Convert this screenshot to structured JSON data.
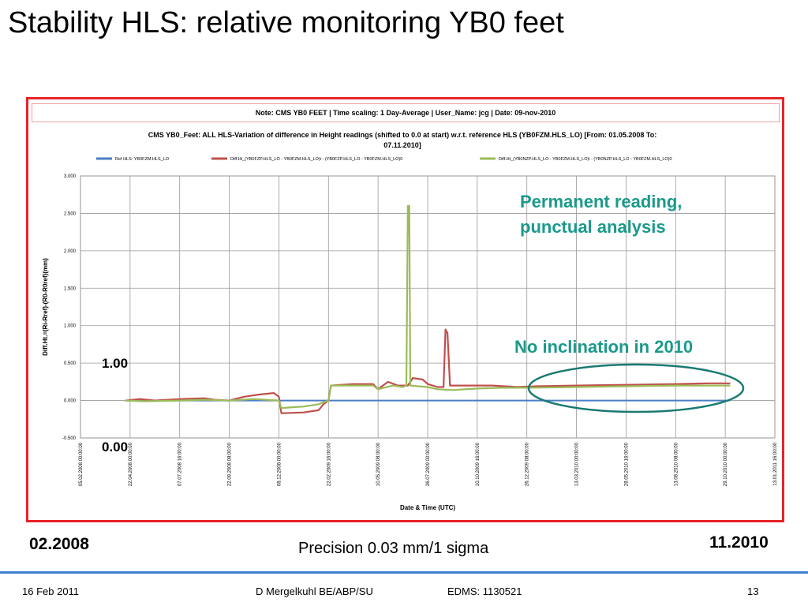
{
  "slide": {
    "title": "Stability HLS: relative monitoring YB0 feet",
    "annotations": {
      "permanent_reading": "Permanent reading,",
      "punctual_analysis": "punctual analysis",
      "no_inclination": "No inclination in 2010",
      "label_100": "1.00",
      "label_000": "0.00",
      "start_date": "02.2008",
      "end_date": "11.2010",
      "precision": "Precision 0.03 mm/1 sigma"
    },
    "footer": {
      "date": "16 Feb 2011",
      "author": "D Mergelkuhl BE/ABP/SU",
      "edms": "EDMS: 1130521",
      "page": "13"
    },
    "colors": {
      "frame": "#e8232a",
      "accent_text": "#1a9a8a",
      "ellipse": "#1a7a72",
      "footer_line": "#3f7fd0"
    }
  },
  "chart_data": {
    "type": "line",
    "note": "Note: CMS YB0 FEET |  Time scaling: 1 Day-Average    | User_Name: jcg    |  Date: 09-nov-2010",
    "title_line1": "CMS YB0_Feet: ALL HLS-Variation of difference in Height readings (shifted to 0.0 at start) w.r.t. reference HLS (YB0FZM.HLS_LO) [From: 01.05.2008 To:",
    "title_line2": "07.11.2010]",
    "xlabel": "Date & Time (UTC)",
    "ylabel": "Diff.Ht.=(Ri-Rref)-(R0-R0ref)(mm)",
    "ylim": [
      -0.5,
      3.0
    ],
    "y_ticks": [
      "3.000",
      "2.500",
      "2.000",
      "1.500",
      "1.000",
      "0.500",
      "0.000",
      "-0.500"
    ],
    "x_ticks": [
      "05.02.2008 00:00:00",
      "22.04.2008 00:00:00",
      "07.07.2008 16:00:00",
      "22.09.2008 08:00:00",
      "08.12.2008 00:00:00",
      "22.02.2009 16:00:00",
      "10.05.2009 08:00:00",
      "26.07.2009 00:00:00",
      "10.10.2009 16:00:00",
      "26.12.2009 08:00:00",
      "13.03.2010 00:00:00",
      "28.05.2010 16:00:00",
      "13.08.2010 08:00:00",
      "29.10.2010 00:00:00",
      "13.01.2011 16:00:00"
    ],
    "grid": true,
    "legend_position": "top",
    "series": [
      {
        "name": "Ref HLS: YB0FZM.HLS_LO",
        "color": "#4a7ec4",
        "points": [
          [
            0.9,
            0.0
          ],
          [
            13.1,
            0.0
          ]
        ]
      },
      {
        "name": "Diff.Ht_(YB0FZP.HLS_LO - YB0FZM.HLS_LO)i - (YB0FZP.HLS_LO - YB0FZM.HLS_LO)0",
        "color": "#c0504d",
        "points": [
          [
            0.9,
            0.0
          ],
          [
            1.2,
            0.02
          ],
          [
            1.5,
            0.0
          ],
          [
            2.0,
            0.02
          ],
          [
            2.5,
            0.03
          ],
          [
            2.7,
            0.01
          ],
          [
            3.0,
            0.0
          ],
          [
            3.3,
            0.05
          ],
          [
            3.6,
            0.08
          ],
          [
            3.9,
            0.1
          ],
          [
            4.0,
            0.05
          ],
          [
            4.05,
            -0.17
          ],
          [
            4.5,
            -0.16
          ],
          [
            4.8,
            -0.13
          ],
          [
            4.9,
            -0.05
          ],
          [
            5.0,
            0.0
          ],
          [
            5.05,
            0.2
          ],
          [
            5.5,
            0.22
          ],
          [
            5.9,
            0.22
          ],
          [
            6.0,
            0.15
          ],
          [
            6.2,
            0.25
          ],
          [
            6.4,
            0.2
          ],
          [
            6.6,
            0.2
          ],
          [
            6.7,
            0.3
          ],
          [
            6.9,
            0.28
          ],
          [
            7.0,
            0.22
          ],
          [
            7.2,
            0.18
          ],
          [
            7.32,
            0.18
          ],
          [
            7.36,
            0.95
          ],
          [
            7.4,
            0.9
          ],
          [
            7.45,
            0.2
          ],
          [
            7.8,
            0.2
          ],
          [
            8.3,
            0.2
          ],
          [
            8.8,
            0.18
          ],
          [
            9.2,
            0.19
          ],
          [
            10.0,
            0.2
          ],
          [
            11.0,
            0.21
          ],
          [
            12.0,
            0.22
          ],
          [
            12.7,
            0.23
          ],
          [
            13.1,
            0.23
          ]
        ]
      },
      {
        "name": "Diff.Ht_(YB0NZP.HLS_LO - YB0FZM.HLS_LO)i - (YB0NZP.HLS_LO - YB0FZM.HLS_LO)0",
        "color": "#9bbb59",
        "points": [
          [
            0.9,
            0.0
          ],
          [
            1.3,
            -0.01
          ],
          [
            2.0,
            0.0
          ],
          [
            2.5,
            0.01
          ],
          [
            3.0,
            0.0
          ],
          [
            3.5,
            0.02
          ],
          [
            4.0,
            0.0
          ],
          [
            4.05,
            -0.1
          ],
          [
            4.5,
            -0.08
          ],
          [
            4.8,
            -0.05
          ],
          [
            5.0,
            0.0
          ],
          [
            5.05,
            0.2
          ],
          [
            5.5,
            0.2
          ],
          [
            5.9,
            0.2
          ],
          [
            6.0,
            0.15
          ],
          [
            6.3,
            0.2
          ],
          [
            6.5,
            0.18
          ],
          [
            6.57,
            0.2
          ],
          [
            6.6,
            2.6
          ],
          [
            6.63,
            2.6
          ],
          [
            6.65,
            0.2
          ],
          [
            7.0,
            0.18
          ],
          [
            7.2,
            0.15
          ],
          [
            7.5,
            0.14
          ],
          [
            8.0,
            0.16
          ],
          [
            8.5,
            0.17
          ],
          [
            9.0,
            0.17
          ],
          [
            10.0,
            0.18
          ],
          [
            11.0,
            0.19
          ],
          [
            12.0,
            0.2
          ],
          [
            13.1,
            0.2
          ]
        ]
      }
    ]
  }
}
